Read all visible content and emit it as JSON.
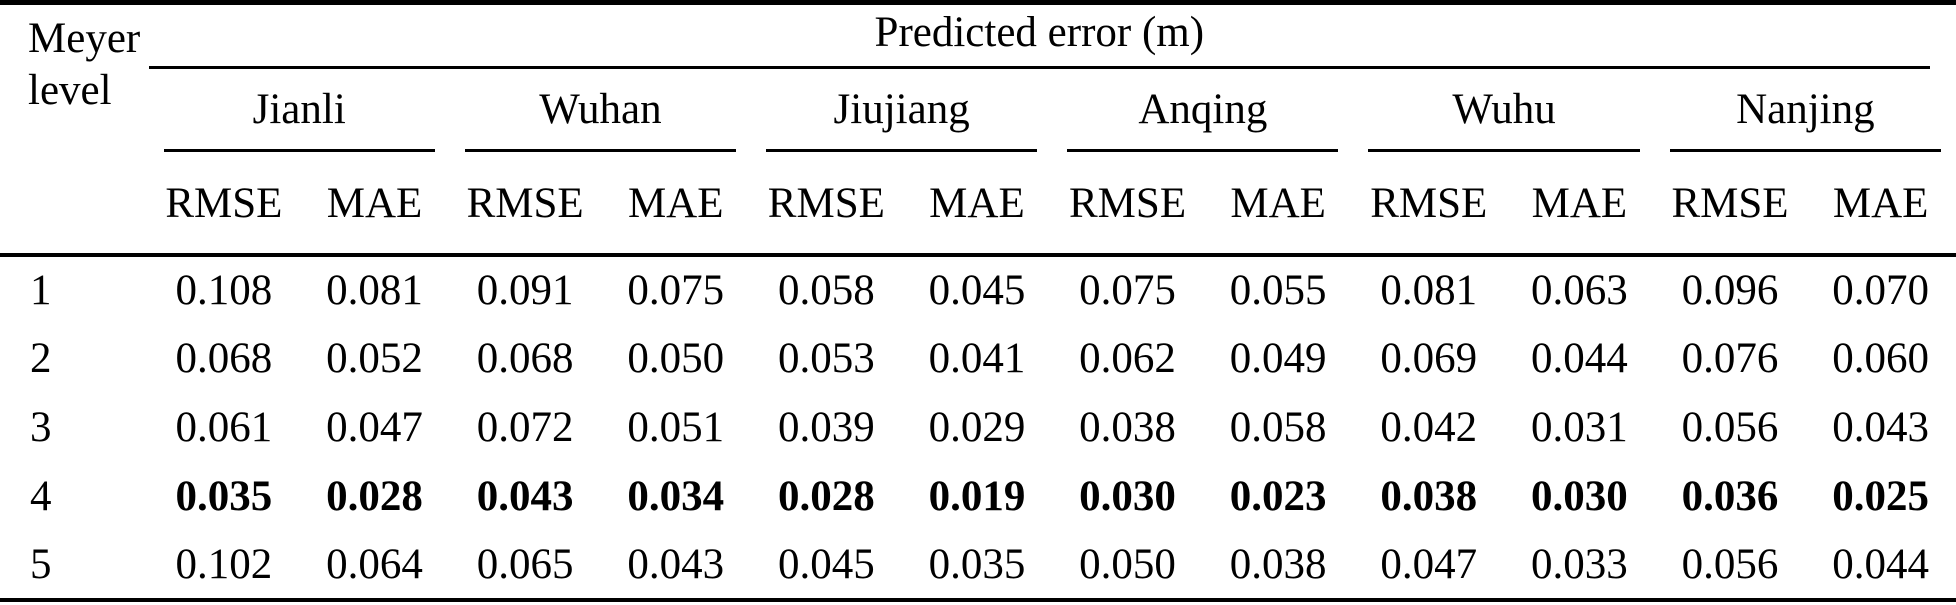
{
  "table": {
    "row_header_lines": [
      "Meyer",
      "level"
    ],
    "span_header": "Predicted error (m)",
    "groups": [
      "Jianli",
      "Wuhan",
      "Jiujiang",
      "Anqing",
      "Wuhu",
      "Nanjing"
    ],
    "metrics": [
      "RMSE",
      "MAE"
    ],
    "rows": [
      {
        "level": "1",
        "bold": false,
        "values": [
          "0.108",
          "0.081",
          "0.091",
          "0.075",
          "0.058",
          "0.045",
          "0.075",
          "0.055",
          "0.081",
          "0.063",
          "0.096",
          "0.070"
        ]
      },
      {
        "level": "2",
        "bold": false,
        "values": [
          "0.068",
          "0.052",
          "0.068",
          "0.050",
          "0.053",
          "0.041",
          "0.062",
          "0.049",
          "0.069",
          "0.044",
          "0.076",
          "0.060"
        ]
      },
      {
        "level": "3",
        "bold": false,
        "values": [
          "0.061",
          "0.047",
          "0.072",
          "0.051",
          "0.039",
          "0.029",
          "0.038",
          "0.058",
          "0.042",
          "0.031",
          "0.056",
          "0.043"
        ]
      },
      {
        "level": "4",
        "bold": true,
        "values": [
          "0.035",
          "0.028",
          "0.043",
          "0.034",
          "0.028",
          "0.019",
          "0.030",
          "0.023",
          "0.038",
          "0.030",
          "0.036",
          "0.025"
        ]
      },
      {
        "level": "5",
        "bold": false,
        "values": [
          "0.102",
          "0.064",
          "0.065",
          "0.043",
          "0.045",
          "0.035",
          "0.050",
          "0.038",
          "0.047",
          "0.033",
          "0.056",
          "0.044"
        ]
      }
    ],
    "colors": {
      "text": "#000000",
      "background": "#ffffff",
      "rule": "#000000"
    }
  }
}
